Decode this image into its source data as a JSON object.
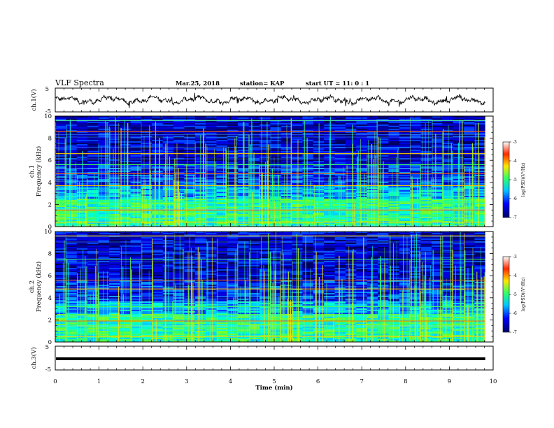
{
  "header": {
    "title": "VLF Spectra",
    "date": "Mar.25, 2018",
    "station": "station= KAP",
    "start": "start  UT =   11: 0  : 1"
  },
  "colors": {
    "spectrogram_dark": "#000033",
    "spectrogram_blue": "#0000c8",
    "spectrogram_cyan": "#00c8ff",
    "spectrogram_green": "#33ff66",
    "spectrogram_yellow": "#ffd000",
    "spectrogram_red": "#ff2a00",
    "trace": "#000000"
  },
  "chart_data": [
    {
      "type": "line",
      "name": "ch1-waveform",
      "ylabel": "ch.1(V)",
      "ylim": [
        -5,
        5
      ],
      "yticks": [
        5,
        -5
      ],
      "xlim": [
        0,
        10
      ],
      "x_extent_data": 9.82,
      "amplitude_range": [
        -1.8,
        2.2
      ]
    },
    {
      "type": "heatmap",
      "name": "ch1-spectrogram",
      "ylabel_line1": "ch.1",
      "ylabel_line2": "Frequency (kHz)",
      "ylim": [
        0,
        10
      ],
      "yticks": [
        0,
        2,
        4,
        6,
        8,
        10
      ],
      "xlim": [
        0,
        10
      ],
      "colorbar": {
        "label": "log(PSD)(V²/Hz)",
        "range": [
          -7,
          -3
        ],
        "ticks": [
          "-3",
          "-4",
          "-5",
          "-6",
          "-7"
        ]
      },
      "persistent_lines_khz": [
        0.4,
        1.5,
        2.2,
        3.7,
        4.8,
        5.6,
        6.6,
        8.6,
        9.6
      ]
    },
    {
      "type": "heatmap",
      "name": "ch2-spectrogram",
      "ylabel_line1": "ch.2",
      "ylabel_line2": "Frequency (kHz)",
      "ylim": [
        0,
        10
      ],
      "yticks": [
        0,
        2,
        4,
        6,
        8,
        10
      ],
      "xlim": [
        0,
        10
      ],
      "colorbar": {
        "label": "log(PSD)(V²/Hz)",
        "range": [
          -7,
          -3
        ],
        "ticks": [
          "-3",
          "-4",
          "-5",
          "-6",
          "-7"
        ]
      },
      "persistent_lines_khz": [
        0.5,
        1.9,
        3.2,
        4.8,
        5.6,
        7.5,
        9.6
      ]
    },
    {
      "type": "line",
      "name": "ch3-waveform",
      "ylabel": "ch.3(V)",
      "ylim": [
        -5,
        5
      ],
      "yticks": [
        5,
        -5
      ],
      "xlim": [
        0,
        10
      ],
      "constant_value": 0
    }
  ],
  "xaxis": {
    "label": "Time (min)",
    "ticks": [
      "0",
      "1",
      "2",
      "3",
      "4",
      "5",
      "6",
      "7",
      "8",
      "9",
      "10"
    ]
  }
}
